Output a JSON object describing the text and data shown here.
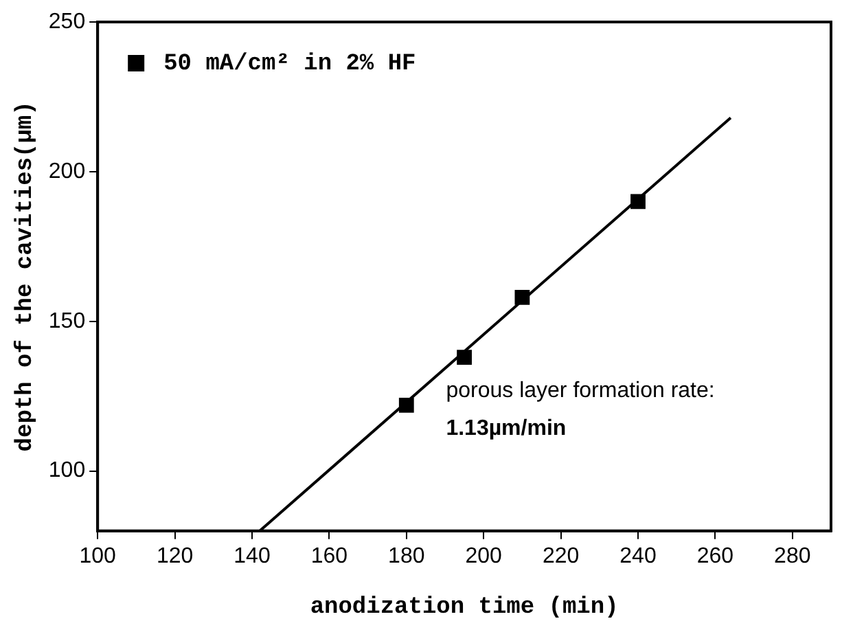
{
  "chart_data": {
    "type": "scatter",
    "xlabel": "anodization time (min)",
    "ylabel": "depth of the cavities(µm)",
    "series": [
      {
        "name": "50 mA/cm² in 2% HF",
        "color": "#000000",
        "x": [
          180,
          195,
          210,
          240
        ],
        "values": [
          122,
          138,
          158,
          190
        ],
        "marker": "square"
      },
      {
        "type": "line",
        "color": "#000000",
        "x": [
          142,
          264
        ],
        "values": [
          80,
          218
        ],
        "marker": "none"
      }
    ],
    "annotations": [
      "porous layer formation rate:",
      "1.13µm/min"
    ],
    "xlim": [
      100,
      290
    ],
    "xticks": [
      100,
      120,
      140,
      160,
      180,
      200,
      220,
      240,
      260,
      280
    ],
    "ylim": [
      80,
      250
    ],
    "yticks": [
      100,
      150,
      200,
      250
    ],
    "grid": false,
    "legend": "top left"
  }
}
